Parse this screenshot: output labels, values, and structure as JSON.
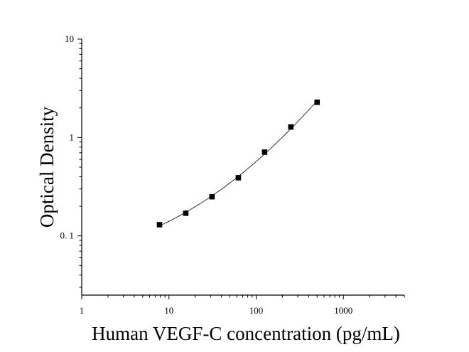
{
  "chart_data": {
    "type": "scatter",
    "title": "",
    "xlabel": "Human VEGF-C concentration (pg/mL)",
    "ylabel": "Optical Density",
    "x_scale": "log",
    "y_scale": "log",
    "xlim": [
      1,
      5000
    ],
    "ylim": [
      0.025,
      10
    ],
    "x_ticks": [
      1,
      10,
      100,
      1000
    ],
    "x_tick_labels": [
      "1",
      "10",
      "100",
      "1000"
    ],
    "y_ticks": [
      0.1,
      1,
      10
    ],
    "y_tick_labels": [
      "0. 1",
      "1",
      "10"
    ],
    "grid": false,
    "legend": "none",
    "series": [
      {
        "marker": "square",
        "color": "#000000",
        "fit_line": true,
        "x": [
          7.8,
          15.6,
          31.2,
          62.5,
          125,
          250,
          500
        ],
        "y": [
          0.13,
          0.17,
          0.25,
          0.39,
          0.71,
          1.28,
          2.28
        ]
      }
    ]
  }
}
